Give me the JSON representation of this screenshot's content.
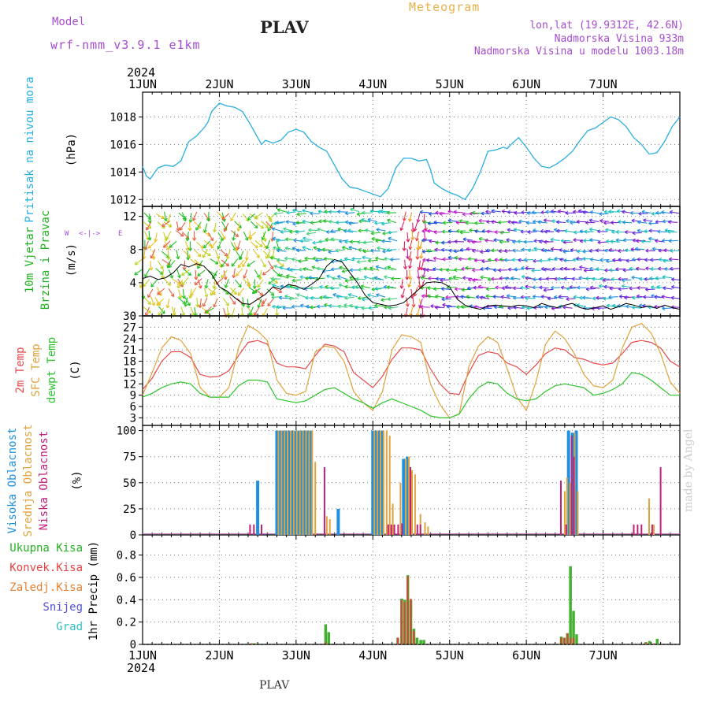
{
  "header": {
    "model_label": "Model",
    "model_value": "wrf-nmm_v3.9.1 e1km",
    "title": "PLAV",
    "meteogram": "Meteogram",
    "lonlat": "lon,lat (19.9312E, 42.6N)",
    "altitude": "Nadmorska Visina 933m",
    "model_altitude": "Nadmorska Visina u modelu 1003.18m"
  },
  "footer": {
    "station": "PLAV",
    "credit": "made by Angel"
  },
  "time_axis": {
    "year": "2024",
    "ticks": [
      "1JUN",
      "2JUN",
      "3JUN",
      "4JUN",
      "5JUN",
      "6JUN",
      "7JUN"
    ]
  },
  "colors": {
    "pressure": "#29aee0",
    "temp2m": "#e84a4a",
    "sfc": "#e0a23c",
    "dewpt": "#2ec42e",
    "high_cloud": "#1e90e0",
    "mid_cloud": "#e0a23c",
    "low_cloud": "#c0207a",
    "total_precip": "#44b030",
    "conv_precip": "#e83c3c",
    "wind_speed": "#000000"
  },
  "chart_data": [
    {
      "type": "line",
      "panel": "pressure",
      "ylabel_left": "Pritisak na nivou mora",
      "ylabel_unit": "(hPa)",
      "ylim": [
        1011.5,
        1019.8
      ],
      "yticks": [
        1012,
        1014,
        1016,
        1018
      ],
      "x_days": [
        0,
        0.05,
        0.1,
        0.2,
        0.3,
        0.4,
        0.5,
        0.6,
        0.7,
        0.8,
        0.85,
        0.9,
        1.0,
        1.1,
        1.2,
        1.3,
        1.4,
        1.5,
        1.55,
        1.6,
        1.7,
        1.8,
        1.9,
        2.0,
        2.1,
        2.2,
        2.3,
        2.4,
        2.5,
        2.6,
        2.7,
        2.8,
        2.9,
        3.0,
        3.1,
        3.2,
        3.3,
        3.4,
        3.5,
        3.6,
        3.7,
        3.75,
        3.8,
        3.9,
        4.0,
        4.1,
        4.2,
        4.3,
        4.4,
        4.5,
        4.6,
        4.7,
        4.75,
        4.8,
        4.9,
        5.0,
        5.1,
        5.2,
        5.3,
        5.4,
        5.5,
        5.6,
        5.7,
        5.8,
        5.9,
        6.0,
        6.1,
        6.2,
        6.3,
        6.4,
        6.5,
        6.6,
        6.7,
        6.8,
        6.9,
        7.0
      ],
      "series": [
        {
          "values": [
            1014.4,
            1013.7,
            1013.5,
            1014.3,
            1014.5,
            1014.4,
            1014.8,
            1016.2,
            1016.6,
            1017.2,
            1017.6,
            1018.4,
            1019.0,
            1018.8,
            1018.7,
            1018.4,
            1017.5,
            1016.5,
            1016.0,
            1016.3,
            1016.1,
            1016.3,
            1016.9,
            1017.1,
            1016.9,
            1016.2,
            1015.8,
            1015.5,
            1014.5,
            1013.5,
            1012.9,
            1012.8,
            1012.6,
            1012.4,
            1012.2,
            1012.8,
            1014.3,
            1015.0,
            1015.0,
            1014.8,
            1014.9,
            1014.2,
            1013.2,
            1012.8,
            1012.5,
            1012.3,
            1012.0,
            1012.8,
            1014.0,
            1015.5,
            1015.6,
            1015.8,
            1015.7,
            1016.0,
            1016.5,
            1015.8,
            1015.0,
            1014.4,
            1014.3,
            1014.6,
            1015.0,
            1015.5,
            1016.3,
            1017.0,
            1017.2,
            1017.6,
            1018.0,
            1017.8,
            1017.3,
            1016.5,
            1016.0,
            1015.3,
            1015.4,
            1016.2,
            1017.3,
            1018.0
          ]
        }
      ]
    },
    {
      "type": "line",
      "panel": "wind",
      "ylabel_left": [
        "10m Vjetar",
        "Brzina i Pravac"
      ],
      "ylabel_unit": "(m/s)",
      "compass": [
        "W",
        "<-",
        "|",
        "->",
        "E"
      ],
      "ylim": [
        0,
        13.2
      ],
      "yticks": [
        0,
        4,
        8,
        12
      ],
      "x_days": [
        0,
        0.1,
        0.2,
        0.3,
        0.4,
        0.5,
        0.6,
        0.7,
        0.8,
        0.9,
        1.0,
        1.1,
        1.2,
        1.3,
        1.4,
        1.5,
        1.6,
        1.7,
        1.8,
        1.9,
        2.0,
        2.1,
        2.2,
        2.3,
        2.4,
        2.5,
        2.6,
        2.7,
        2.8,
        2.9,
        3.0,
        3.1,
        3.2,
        3.3,
        3.4,
        3.5,
        3.6,
        3.7,
        3.8,
        3.9,
        4.0,
        4.1,
        4.2,
        4.3,
        4.4,
        4.5,
        4.6,
        4.7,
        4.8,
        4.9,
        5.0,
        5.1,
        5.2,
        5.3,
        5.4,
        5.5,
        5.6,
        5.7,
        5.8,
        5.9,
        6.0,
        6.1,
        6.2,
        6.3,
        6.4,
        6.5,
        6.6,
        6.7,
        6.8,
        6.9,
        7.0
      ],
      "series": [
        {
          "name": "speed",
          "values": [
            4.5,
            4.8,
            4.4,
            4.6,
            5.2,
            6.2,
            5.9,
            6.3,
            6.0,
            5.0,
            3.5,
            3.0,
            2.2,
            1.5,
            1.4,
            2.0,
            2.6,
            3.5,
            3.2,
            3.8,
            3.6,
            3.2,
            3.8,
            4.5,
            6.0,
            6.8,
            6.5,
            5.2,
            4.0,
            2.5,
            1.6,
            1.4,
            1.2,
            1.3,
            1.6,
            2.4,
            3.2,
            4.0,
            4.1,
            4.0,
            3.5,
            2.0,
            1.3,
            1.0,
            0.8,
            1.2,
            1.3,
            1.2,
            1.1,
            1.3,
            1.2,
            1.0,
            1.5,
            1.2,
            1.0,
            1.3,
            1.5,
            1.0,
            0.8,
            1.0,
            1.2,
            0.8,
            1.1,
            1.5,
            1.3,
            1.0,
            1.2,
            0.9,
            1.3,
            1.0,
            0.8
          ]
        }
      ]
    },
    {
      "type": "line",
      "panel": "temperature",
      "ylabel_left": [
        "2m Temp",
        "SFC Temp",
        "dewpt Temp"
      ],
      "ylabel_unit": "(C)",
      "ylim": [
        1,
        30
      ],
      "yticks": [
        3,
        6,
        9,
        12,
        15,
        18,
        21,
        24,
        27,
        30
      ],
      "x_days": [
        0,
        0.125,
        0.25,
        0.375,
        0.5,
        0.625,
        0.75,
        0.875,
        1.0,
        1.125,
        1.25,
        1.375,
        1.5,
        1.625,
        1.75,
        1.875,
        2.0,
        2.125,
        2.25,
        2.375,
        2.5,
        2.625,
        2.75,
        2.875,
        3.0,
        3.125,
        3.25,
        3.375,
        3.5,
        3.625,
        3.75,
        3.875,
        4.0,
        4.125,
        4.25,
        4.375,
        4.5,
        4.625,
        4.75,
        4.875,
        5.0,
        5.125,
        5.25,
        5.375,
        5.5,
        5.625,
        5.75,
        5.875,
        6.0,
        6.125,
        6.25,
        6.375,
        6.5,
        6.625,
        6.75,
        6.875,
        7.0
      ],
      "series": [
        {
          "name": "2m Temp",
          "values": [
            10.5,
            13.5,
            18.0,
            20.5,
            20.5,
            19.0,
            14.5,
            13.8,
            14.0,
            15.5,
            19.5,
            23.0,
            23.5,
            22.5,
            17.5,
            16.5,
            16.5,
            16.0,
            19.5,
            22.5,
            22.0,
            20.5,
            15.0,
            13.0,
            11.0,
            14.0,
            18.5,
            21.5,
            21.5,
            21.0,
            16.0,
            12.0,
            9.5,
            9.2,
            15.0,
            19.5,
            20.5,
            20.0,
            17.5,
            16.5,
            14.5,
            17.0,
            20.0,
            21.5,
            21.0,
            19.0,
            18.5,
            17.5,
            17.0,
            17.5,
            20.0,
            23.0,
            23.5,
            23.0,
            21.5,
            18.0,
            16.5
          ]
        },
        {
          "name": "SFC Temp",
          "values": [
            9.0,
            15.0,
            21.5,
            24.5,
            23.5,
            20.0,
            11.0,
            8.5,
            8.5,
            11.0,
            21.5,
            27.5,
            26.0,
            23.5,
            13.0,
            9.5,
            9.0,
            10.0,
            20.5,
            22.0,
            21.5,
            18.0,
            10.0,
            7.0,
            5.0,
            10.0,
            21.0,
            25.0,
            24.5,
            23.0,
            12.0,
            6.5,
            3.0,
            4.0,
            16.5,
            22.0,
            24.5,
            23.0,
            16.0,
            8.5,
            5.0,
            12.5,
            22.5,
            26.0,
            24.0,
            20.0,
            14.5,
            11.5,
            11.0,
            13.0,
            21.5,
            27.0,
            28.0,
            25.5,
            20.0,
            12.5,
            9.5
          ]
        },
        {
          "name": "dewpt Temp",
          "values": [
            8.5,
            9.5,
            11.0,
            12.0,
            12.5,
            12.0,
            9.5,
            8.5,
            8.5,
            8.5,
            11.5,
            13.0,
            13.0,
            12.5,
            8.0,
            7.5,
            7.0,
            7.5,
            9.0,
            10.5,
            11.0,
            9.5,
            8.0,
            7.0,
            5.5,
            7.0,
            8.0,
            7.0,
            6.0,
            5.0,
            3.5,
            3.0,
            3.0,
            4.0,
            8.0,
            11.0,
            12.5,
            12.0,
            9.5,
            8.0,
            7.5,
            8.0,
            10.0,
            11.5,
            12.0,
            11.5,
            11.0,
            9.0,
            9.5,
            10.5,
            12.0,
            15.0,
            14.5,
            13.0,
            11.0,
            9.0,
            9.0
          ]
        }
      ]
    },
    {
      "type": "bar",
      "panel": "cloud",
      "ylabel_left": [
        "Visoka Oblacnost",
        "Srednja Oblacnost",
        "Niska Oblacnost"
      ],
      "ylabel_unit": "(%)",
      "ylim": [
        0,
        105
      ],
      "yticks": [
        0,
        25,
        50,
        75,
        100
      ],
      "series": [
        {
          "name": "Visoka Oblacnost",
          "x_days": [
            1.5,
            1.75,
            1.79,
            1.83,
            1.87,
            1.91,
            1.95,
            1.99,
            2.03,
            2.07,
            2.11,
            2.15,
            2.19,
            2.55,
            3.0,
            3.04,
            3.08,
            3.12,
            3.4,
            3.45,
            5.55,
            5.6,
            5.65
          ],
          "values": [
            52,
            100,
            100,
            100,
            100,
            100,
            100,
            100,
            100,
            100,
            100,
            100,
            100,
            25,
            100,
            100,
            100,
            100,
            73,
            75,
            100,
            98,
            100
          ]
        },
        {
          "name": "Srednja Oblacnost",
          "x_days": [
            1.77,
            1.81,
            1.85,
            1.89,
            1.93,
            1.97,
            2.01,
            2.05,
            2.09,
            2.13,
            2.17,
            2.21,
            2.25,
            2.4,
            2.44,
            3.02,
            3.06,
            3.1,
            3.14,
            3.18,
            3.22,
            3.26,
            3.36,
            3.43,
            3.47,
            3.51,
            3.55,
            3.62,
            3.68,
            3.72,
            5.5,
            5.53,
            5.57,
            5.63,
            5.67,
            6.6,
            6.66
          ],
          "values": [
            100,
            100,
            100,
            100,
            100,
            100,
            100,
            100,
            100,
            100,
            100,
            100,
            70,
            18,
            15,
            100,
            100,
            100,
            100,
            100,
            95,
            30,
            50,
            73,
            75,
            62,
            58,
            20,
            12,
            8,
            42,
            55,
            50,
            98,
            42,
            35,
            10
          ]
        },
        {
          "name": "Niska Oblacnost",
          "x_days": [
            1.4,
            1.45,
            1.55,
            2.37,
            3.2,
            3.24,
            3.28,
            3.33,
            3.38,
            3.49,
            3.58,
            3.62,
            5.45,
            5.52,
            5.59,
            5.62,
            6.4,
            6.45,
            6.5,
            6.64,
            6.75
          ],
          "values": [
            10,
            10,
            10,
            65,
            10,
            10,
            10,
            10,
            11,
            65,
            10,
            10,
            52,
            10,
            95,
            75,
            10,
            10,
            10,
            10,
            65
          ]
        }
      ]
    },
    {
      "type": "bar",
      "panel": "precip",
      "ylabel_left": [
        "Ukupna Kisa",
        "Konvek.Kisa",
        "Zaledj.Kisa",
        "Snijeg",
        "Grad"
      ],
      "ylabel_unit": "1hr Precip (mm)",
      "ylim": [
        0,
        0.98
      ],
      "yticks": [
        0,
        0.2,
        0.4,
        0.6,
        0.8
      ],
      "series": [
        {
          "name": "Ukupna Kisa",
          "x_days": [
            1.42,
            1.46,
            2.38,
            2.42,
            3.32,
            3.37,
            3.41,
            3.45,
            3.49,
            3.53,
            3.57,
            3.62,
            3.66,
            5.45,
            5.49,
            5.53,
            5.57,
            5.61,
            5.65,
            6.55,
            6.6,
            6.7
          ],
          "values": [
            0.01,
            0.01,
            0.18,
            0.11,
            0.06,
            0.41,
            0.4,
            0.62,
            0.4,
            0.14,
            0.06,
            0.04,
            0.04,
            0.07,
            0.06,
            0.1,
            0.7,
            0.3,
            0.09,
            0.02,
            0.03,
            0.05
          ]
        },
        {
          "name": "Konvek.Kisa",
          "x_days": [
            1.44,
            2.4,
            3.34,
            3.39,
            3.43,
            3.47,
            3.51,
            3.55,
            5.47,
            5.51,
            5.55,
            5.59,
            5.63,
            6.58,
            6.68
          ],
          "values": [
            0.01,
            0.02,
            0.06,
            0.4,
            0.38,
            0.61,
            0.41,
            0.12,
            0.06,
            0.06,
            0.1,
            0.06,
            0.06,
            0.02,
            0.01
          ]
        }
      ]
    }
  ]
}
